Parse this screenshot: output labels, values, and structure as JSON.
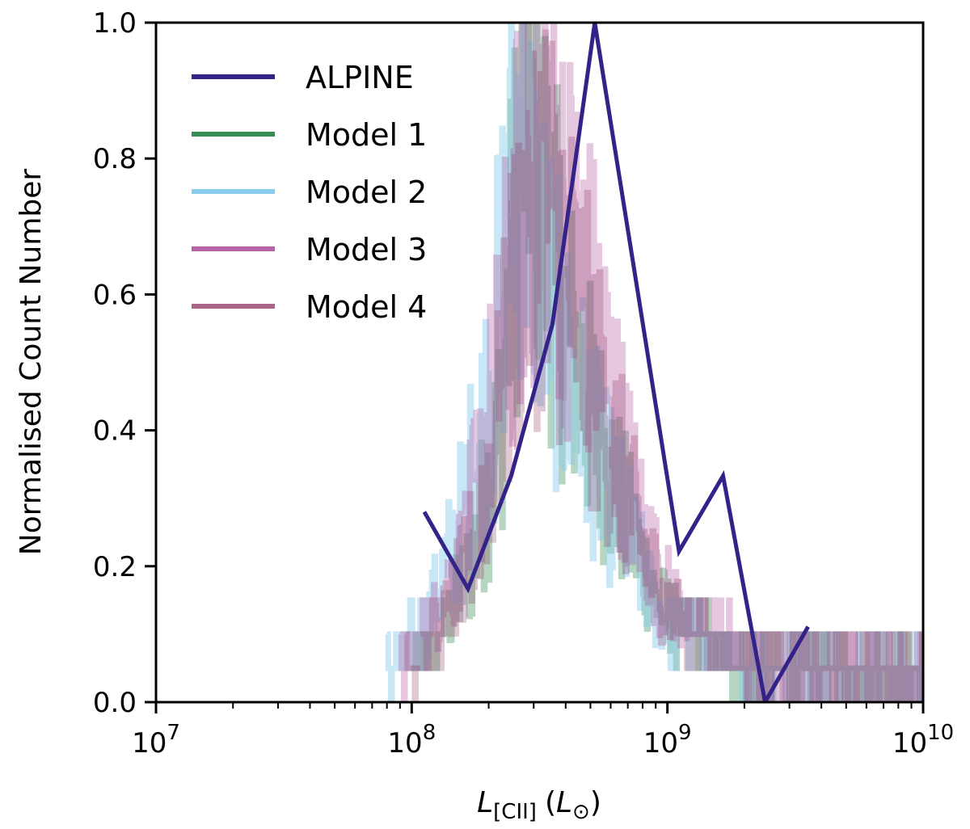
{
  "chart_data": {
    "type": "line",
    "title": "",
    "xlabel_parts": {
      "main": "L",
      "sub": "[CII]",
      "unit_open": "(",
      "unit": "L",
      "unit_sub": "⊙",
      "unit_close": ")"
    },
    "ylabel": "Normalised Count Number",
    "x_scale": "log",
    "xlim": [
      10000000,
      10000000000
    ],
    "ylim": [
      0.0,
      1.0
    ],
    "x_ticks": [
      {
        "value": 10000000,
        "base": "10",
        "exp": "7"
      },
      {
        "value": 100000000,
        "base": "10",
        "exp": "8"
      },
      {
        "value": 1000000000,
        "base": "10",
        "exp": "9"
      },
      {
        "value": 10000000000,
        "base": "10",
        "exp": "10"
      }
    ],
    "y_ticks": [
      "0.0",
      "0.2",
      "0.4",
      "0.6",
      "0.8",
      "1.0"
    ],
    "grid": false,
    "legend_position": "top-left",
    "series": [
      {
        "name": "ALPINE",
        "color": "#332288",
        "opacity": 1.0,
        "style": "line",
        "x": [
          112000000,
          166000000,
          245000000,
          355000000,
          520000000,
          760000000,
          1110000000,
          1650000000,
          2410000000,
          3550000000
        ],
        "y": [
          0.28,
          0.167,
          0.333,
          0.556,
          1.0,
          0.611,
          0.222,
          0.333,
          0.0,
          0.111
        ]
      },
      {
        "name": "Model 1",
        "color": "#117733",
        "opacity": 0.3,
        "style": "noisy-step",
        "x": [
          100000000,
          130000000,
          170000000,
          220000000,
          280000000,
          340000000,
          400000000,
          480000000,
          580000000,
          720000000,
          900000000,
          1200000000,
          1600000000,
          2200000000,
          3000000000,
          4500000000,
          7000000000,
          10000000000
        ],
        "y": [
          0.05,
          0.1,
          0.2,
          0.4,
          0.95,
          0.7,
          0.55,
          0.45,
          0.35,
          0.25,
          0.15,
          0.1,
          0.07,
          0.05,
          0.05,
          0.05,
          0.05,
          0.04
        ]
      },
      {
        "name": "Model 2",
        "color": "#88CCEE",
        "opacity": 0.45,
        "style": "noisy-step",
        "x": [
          80000000,
          110000000,
          150000000,
          200000000,
          260000000,
          320000000,
          390000000,
          470000000,
          570000000,
          700000000,
          880000000,
          1150000000,
          1550000000,
          2100000000,
          2900000000,
          4200000000,
          6500000000,
          10000000000
        ],
        "y": [
          0.05,
          0.1,
          0.25,
          0.45,
          0.85,
          0.65,
          0.5,
          0.42,
          0.32,
          0.25,
          0.14,
          0.1,
          0.08,
          0.06,
          0.05,
          0.05,
          0.04,
          0.04
        ]
      },
      {
        "name": "Model 3",
        "color": "#AA4499",
        "opacity": 0.3,
        "style": "noisy-step",
        "x": [
          90000000,
          120000000,
          160000000,
          210000000,
          270000000,
          330000000,
          400000000,
          490000000,
          600000000,
          740000000,
          920000000,
          1200000000,
          1600000000,
          2200000000,
          3000000000,
          4500000000,
          7000000000,
          10000000000
        ],
        "y": [
          0.05,
          0.12,
          0.22,
          0.45,
          0.75,
          0.85,
          0.7,
          0.6,
          0.45,
          0.3,
          0.18,
          0.12,
          0.09,
          0.06,
          0.05,
          0.05,
          0.05,
          0.04
        ]
      },
      {
        "name": "Model 4",
        "color": "#882255",
        "opacity": 0.25,
        "style": "noisy-step",
        "x": [
          95000000,
          125000000,
          165000000,
          215000000,
          275000000,
          335000000,
          410000000,
          500000000,
          610000000,
          750000000,
          930000000,
          1200000000,
          1600000000,
          2200000000,
          3000000000,
          4500000000,
          7000000000,
          10000000000
        ],
        "y": [
          0.05,
          0.1,
          0.2,
          0.4,
          0.7,
          0.75,
          0.62,
          0.5,
          0.38,
          0.26,
          0.16,
          0.11,
          0.08,
          0.06,
          0.05,
          0.05,
          0.04,
          0.04
        ]
      }
    ]
  }
}
